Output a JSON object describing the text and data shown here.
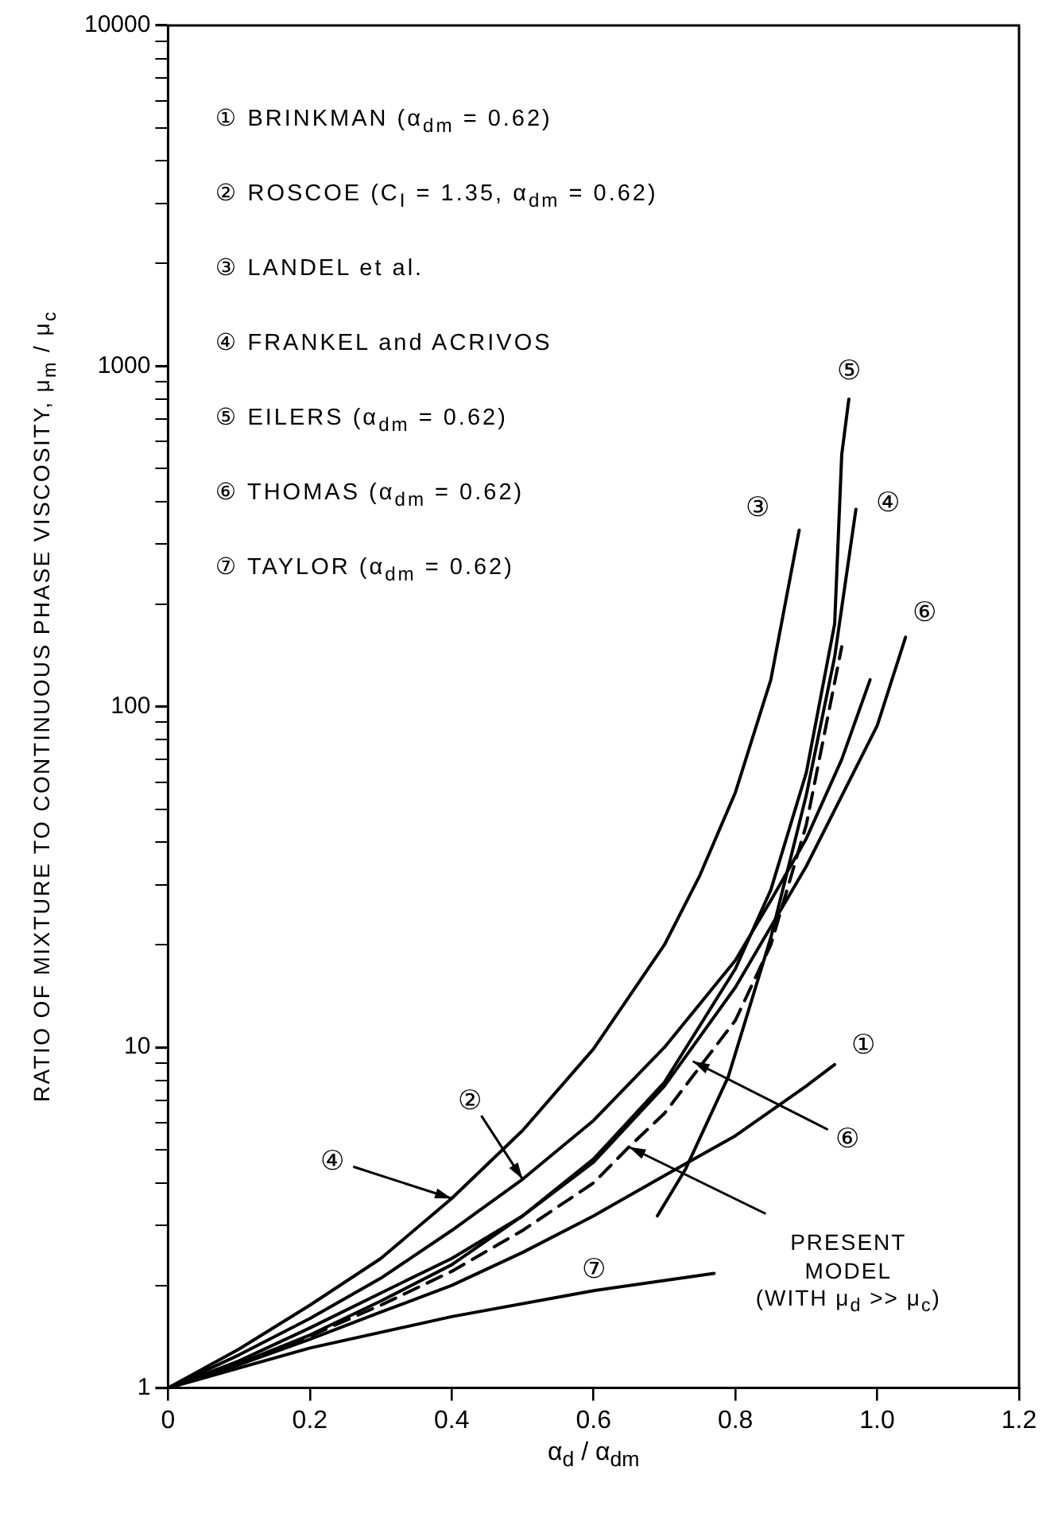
{
  "chart_data": {
    "type": "line",
    "xlabel": "α$_{d}$ / α$_{dm}$",
    "ylabel": "RATIO OF MIXTURE TO CONTINUOUS PHASE VISCOSITY, μ$_{m}$ / μ$_{c}$",
    "xlim": [
      0,
      1.2
    ],
    "xticks": [
      0,
      0.2,
      0.4,
      0.6,
      0.8,
      {
        "value": 1,
        "label": "1.0"
      },
      1.2
    ],
    "ylim": [
      1,
      10000
    ],
    "yticks": [
      1,
      {
        "value": 2,
        "label": null
      },
      {
        "value": 3,
        "label": null
      },
      {
        "value": 4,
        "label": null
      },
      {
        "value": 5,
        "label": null
      },
      {
        "value": 6,
        "label": null
      },
      {
        "value": 7,
        "label": null
      },
      {
        "value": 8,
        "label": null
      },
      {
        "value": 9,
        "label": null
      },
      10,
      {
        "value": 20,
        "label": null
      },
      {
        "value": 30,
        "label": null
      },
      {
        "value": 40,
        "label": null
      },
      {
        "value": 50,
        "label": null
      },
      {
        "value": 60,
        "label": null
      },
      {
        "value": 70,
        "label": null
      },
      {
        "value": 80,
        "label": null
      },
      {
        "value": 90,
        "label": null
      },
      100,
      {
        "value": 200,
        "label": null
      },
      {
        "value": 300,
        "label": null
      },
      {
        "value": 400,
        "label": null
      },
      {
        "value": 500,
        "label": null
      },
      {
        "value": 600,
        "label": null
      },
      {
        "value": 700,
        "label": null
      },
      {
        "value": 800,
        "label": null
      },
      {
        "value": 900,
        "label": null
      },
      1000,
      {
        "value": 2000,
        "label": null
      },
      {
        "value": 3000,
        "label": null
      },
      {
        "value": 4000,
        "label": null
      },
      {
        "value": 5000,
        "label": null
      },
      {
        "value": 6000,
        "label": null
      },
      {
        "value": 7000,
        "label": null
      },
      {
        "value": 8000,
        "label": null
      },
      {
        "value": 9000,
        "label": null
      },
      10000
    ],
    "log": "y",
    "grid": false,
    "marker": "none",
    "line_style": "solid",
    "series": [
      {
        "color": "#000000",
        "x": [
          0,
          0.1,
          0.2,
          0.3,
          0.4,
          0.5,
          0.6,
          0.7,
          0.8,
          0.9,
          0.94
        ],
        "values": [
          1,
          1.17,
          1.39,
          1.67,
          2.0,
          2.5,
          3.2,
          4.2,
          5.5,
          7.7,
          8.9
        ]
      },
      {
        "color": "#000000",
        "x": [
          0,
          0.1,
          0.2,
          0.3,
          0.4,
          0.5,
          0.6,
          0.7,
          0.8,
          0.85,
          0.9,
          0.95,
          0.99
        ],
        "values": [
          1,
          1.25,
          1.6,
          2.1,
          2.9,
          4.1,
          6.1,
          10,
          18,
          27,
          41,
          70,
          120
        ]
      },
      {
        "color": "#000000",
        "x": [
          0,
          0.1,
          0.2,
          0.3,
          0.4,
          0.5,
          0.6,
          0.7,
          0.75,
          0.8,
          0.85,
          0.89
        ],
        "values": [
          1,
          1.3,
          1.75,
          2.4,
          3.6,
          5.7,
          9.9,
          20,
          32,
          56,
          120,
          330
        ]
      },
      {
        "color": "#000000",
        "x": [
          0.69,
          0.73,
          0.79,
          0.85,
          0.9,
          0.94,
          0.97
        ],
        "values": [
          3.2,
          4.4,
          8.2,
          21,
          55,
          140,
          380
        ]
      },
      {
        "color": "#000000",
        "x": [
          0,
          0.1,
          0.2,
          0.3,
          0.4,
          0.5,
          0.6,
          0.7,
          0.8,
          0.85,
          0.9,
          0.94,
          0.95,
          0.96
        ],
        "values": [
          1,
          1.18,
          1.43,
          1.8,
          2.3,
          3.2,
          4.7,
          7.9,
          17,
          29,
          64,
          175,
          550,
          800
        ]
      },
      {
        "color": "#000000",
        "x": [
          0,
          0.1,
          0.2,
          0.3,
          0.4,
          0.5,
          0.6,
          0.7,
          0.8,
          0.9,
          1.0,
          1.04
        ],
        "values": [
          1,
          1.2,
          1.5,
          1.9,
          2.4,
          3.2,
          4.6,
          7.7,
          15,
          34,
          88,
          160
        ]
      },
      {
        "color": "#000000",
        "x": [
          0,
          0.2,
          0.4,
          0.6,
          0.77
        ],
        "values": [
          1,
          1.31,
          1.62,
          1.93,
          2.17
        ]
      },
      {
        "color": "#000000",
        "line_style": "dashed",
        "x": [
          0,
          0.1,
          0.2,
          0.3,
          0.4,
          0.5,
          0.6,
          0.65,
          0.7,
          0.8,
          0.85,
          0.9,
          0.95
        ],
        "values": [
          1,
          1.18,
          1.42,
          1.75,
          2.2,
          2.9,
          4.0,
          5.1,
          6.4,
          12,
          20,
          45,
          150
        ]
      }
    ],
    "annotations": [
      "① BRINKMAN  (α$_{dm}$ = 0.62)",
      "② ROSCOE (C$_{I}$ = 1.35, α$_{dm}$ = 0.62)",
      "③ LANDEL et al.",
      "④ FRANKEL and ACRIVOS",
      "⑤ EILERS  (α$_{dm}$ = 0.62)",
      "⑥ THOMAS  (α$_{dm}$ = 0.62)",
      "⑦ TAYLOR  (α$_{dm}$ = 0.62)",
      {
        "text": "⑤",
        "x": 0.96,
        "y": 800
      },
      {
        "text": "③",
        "x": 0.89,
        "y": 330
      },
      {
        "text": "④",
        "x": 0.97,
        "y": 380
      },
      {
        "text": "⑥",
        "x": 1.04,
        "y": 160
      },
      {
        "text": "①",
        "x": 0.94,
        "y": 8.9
      },
      {
        "text": "⑥",
        "x": 0.74,
        "y": 9.1
      },
      {
        "text": "②",
        "x": 0.5,
        "y": 4.1
      },
      {
        "text": "④",
        "x": 0.4,
        "y": 3.6
      },
      {
        "text": "⑦",
        "x": 0.6,
        "y": 1.93
      },
      {
        "text": "PRESENT\nMODEL\n(WITH μ$_{d}$ >> μ$_{c}$)",
        "x": 0.65,
        "y": 5.1
      }
    ]
  }
}
